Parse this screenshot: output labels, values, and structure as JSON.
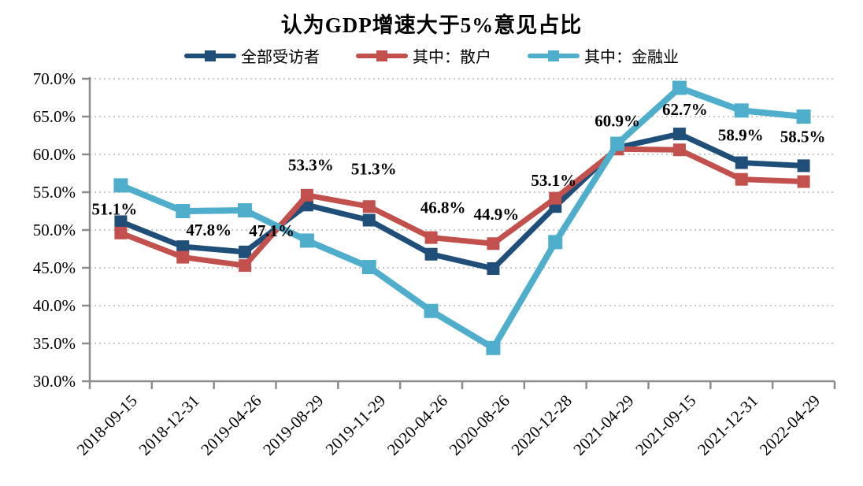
{
  "title": "认为GDP增速大于5%意见占比",
  "legend": [
    {
      "label": "全部受访者",
      "color": "#1F4E79"
    },
    {
      "label": "其中：散户",
      "color": "#C2504D"
    },
    {
      "label": "其中：金融业",
      "color": "#4FAECB"
    }
  ],
  "colors": {
    "all_respondents": "#1F4E79",
    "retail": "#C2504D",
    "finance": "#4FAECB",
    "gridline": "#C9C9C9",
    "axis": "#8C8C8C",
    "text": "#000000"
  },
  "chart_data": {
    "type": "line",
    "categories": [
      "2018-09-15",
      "2018-12-31",
      "2019-04-26",
      "2019-08-29",
      "2019-11-29",
      "2020-04-26",
      "2020-08-26",
      "2020-12-28",
      "2021-04-29",
      "2021-09-15",
      "2021-12-31",
      "2022-04-29"
    ],
    "series": [
      {
        "name": "全部受访者",
        "color": "#1F4E79",
        "values": [
          51.1,
          47.8,
          47.1,
          53.3,
          51.3,
          46.8,
          44.9,
          53.1,
          60.9,
          62.7,
          58.9,
          58.5
        ],
        "labeled": true
      },
      {
        "name": "其中：散户",
        "color": "#C2504D",
        "values": [
          49.6,
          46.4,
          45.3,
          54.6,
          53.1,
          49.0,
          48.2,
          54.2,
          60.7,
          60.6,
          56.7,
          56.4
        ],
        "labeled": false
      },
      {
        "name": "其中：金融业",
        "color": "#4FAECB",
        "values": [
          55.9,
          52.5,
          52.6,
          48.6,
          45.1,
          39.3,
          34.4,
          48.4,
          61.4,
          68.8,
          65.8,
          65.0
        ],
        "labeled": false
      }
    ],
    "data_labels": [
      "51.1%",
      "47.8%",
      "47.1%",
      "53.3%",
      "51.3%",
      "46.8%",
      "44.9%",
      "53.1%",
      "60.9%",
      "62.7%",
      "58.9%",
      "58.5%"
    ],
    "ylim": [
      30,
      70
    ],
    "ytick_step": 5,
    "ytick_labels": [
      "30.0%",
      "35.0%",
      "40.0%",
      "45.0%",
      "50.0%",
      "55.0%",
      "60.0%",
      "65.0%",
      "70.0%"
    ],
    "grid": "horizontal-dotted",
    "legend_position": "top",
    "xlabel": "",
    "ylabel": ""
  }
}
